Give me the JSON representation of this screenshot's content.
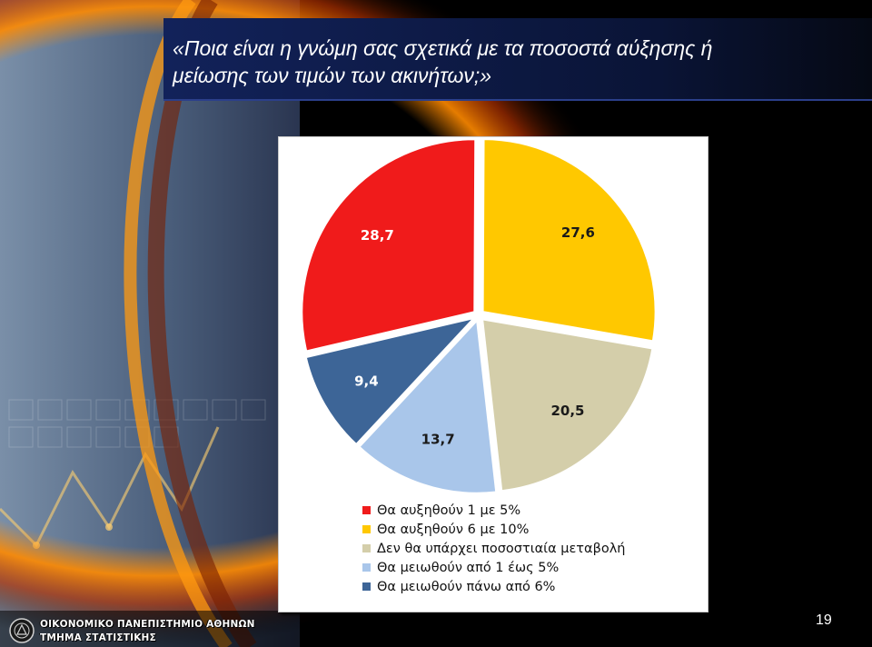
{
  "slide": {
    "title_line1": "«Ποια είναι η γνώμη σας σχετικά με τα ποσοστά αύξησης ή",
    "title_line2": "μείωσης των τιμών των ακινήτων;»",
    "footer_line1": "ΟΙΚΟΝΟΜΙΚΟ ΠΑΝΕΠΙΣΤΗΜΙΟ ΑΘΗΝΩΝ",
    "footer_line2": "ΤΜΗΜΑ ΣΤΑΤΙΣΤΙΚΗΣ",
    "page_number": "19",
    "logo_icon": "university-seal-icon"
  },
  "chart_data": {
    "type": "pie",
    "exploded": true,
    "legend_position": "bottom",
    "categories": [
      "Θα αυξηθούν 1 με 5%",
      "Θα αυξηθούν 6 με 10%",
      "Δεν θα υπάρχει ποσοστιαία μεταβολή",
      "Θα μειωθούν από 1 έως 5%",
      "Θα μειωθούν πάνω από 6%"
    ],
    "values": [
      28.7,
      27.6,
      20.5,
      13.7,
      9.4
    ],
    "value_labels": [
      "28,7",
      "27,6",
      "20,5",
      "13,7",
      "9,4"
    ],
    "colors": [
      "#f01b1b",
      "#ffc800",
      "#d4ceaa",
      "#a9c6ea",
      "#3d6597"
    ],
    "slice_order_clockwise_from_top": [
      1,
      2,
      3,
      4,
      0
    ]
  }
}
